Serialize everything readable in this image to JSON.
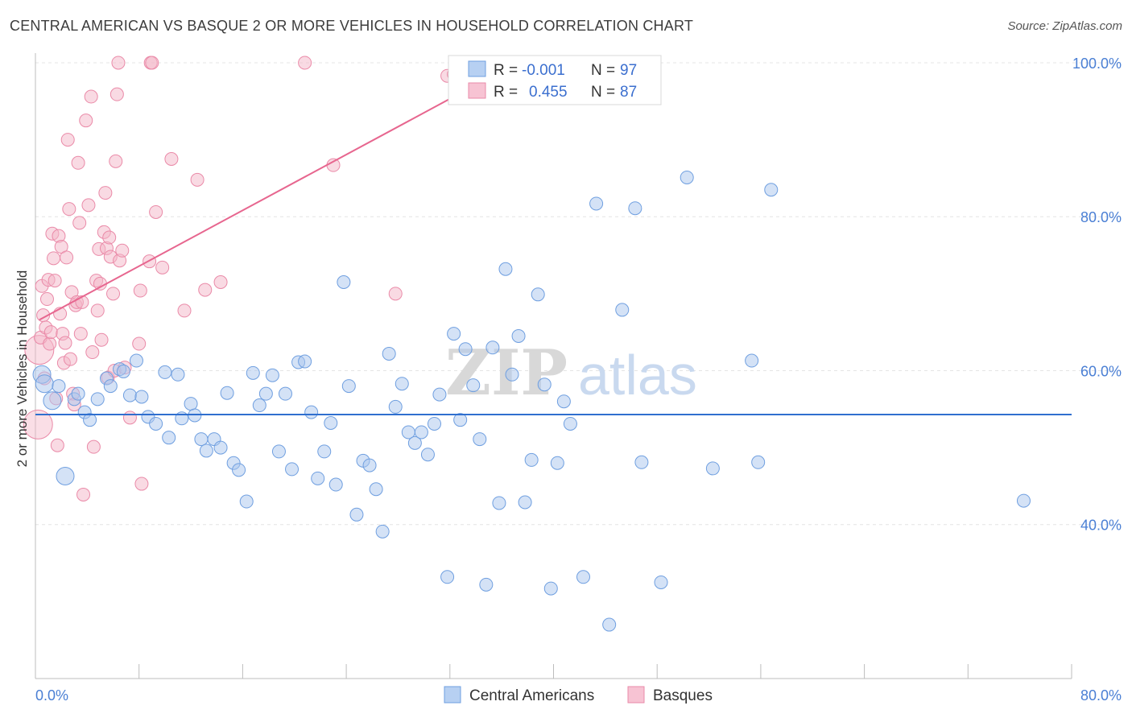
{
  "title": "CENTRAL AMERICAN VS BASQUE 2 OR MORE VEHICLES IN HOUSEHOLD CORRELATION CHART",
  "source": "Source: ZipAtlas.com",
  "watermark": {
    "zip": "ZIP",
    "atlas": "atlas"
  },
  "legend_box": {
    "rows": [
      {
        "r_label": "R =",
        "r_value": "-0.001",
        "n_label": "N =",
        "n_value": "97",
        "color": "#a9c6ee"
      },
      {
        "r_label": "R =",
        "r_value": "0.455",
        "n_label": "N =",
        "n_value": "87",
        "color": "#f4b6c8"
      }
    ]
  },
  "bottom_legend": [
    {
      "label": "Central Americans",
      "color": "#a9c6ee"
    },
    {
      "label": "Basques",
      "color": "#f4b6c8"
    }
  ],
  "chart_data": {
    "type": "scatter",
    "title": "CENTRAL AMERICAN VS BASQUE 2 OR MORE VEHICLES IN HOUSEHOLD CORRELATION CHART",
    "xlabel": "",
    "ylabel": "2 or more Vehicles in Household",
    "xlim": [
      0,
      80
    ],
    "ylim": [
      20,
      102
    ],
    "x_tick_labels": [
      "0.0%",
      "80.0%"
    ],
    "y_ticks": [
      40,
      60,
      80,
      100
    ],
    "y_tick_labels": [
      "40.0%",
      "60.0%",
      "80.0%",
      "100.0%"
    ],
    "grid": true,
    "legend_position": "top-center",
    "series": [
      {
        "name": "Central Americans",
        "color": "#6f9fe0",
        "fill": "#a9c6ee",
        "trend": {
          "x": [
            0,
            80
          ],
          "y": [
            54.3,
            54.3
          ],
          "color": "#2f6fcf"
        },
        "points": [
          [
            0.5,
            59.5
          ],
          [
            0.7,
            58.3
          ],
          [
            1.3,
            56.1
          ],
          [
            1.8,
            58.0
          ],
          [
            2.3,
            46.3
          ],
          [
            3.0,
            56.3
          ],
          [
            3.3,
            57.0
          ],
          [
            3.8,
            54.6
          ],
          [
            4.2,
            53.6
          ],
          [
            4.8,
            56.3
          ],
          [
            5.5,
            59.0
          ],
          [
            5.8,
            58.0
          ],
          [
            6.5,
            60.2
          ],
          [
            6.8,
            59.9
          ],
          [
            7.3,
            56.8
          ],
          [
            7.8,
            61.3
          ],
          [
            8.2,
            56.6
          ],
          [
            8.7,
            54.0
          ],
          [
            9.3,
            53.1
          ],
          [
            10.0,
            59.8
          ],
          [
            10.3,
            51.3
          ],
          [
            11.0,
            59.5
          ],
          [
            11.3,
            53.8
          ],
          [
            12.0,
            55.7
          ],
          [
            12.3,
            54.2
          ],
          [
            12.8,
            51.1
          ],
          [
            13.2,
            49.6
          ],
          [
            13.8,
            51.1
          ],
          [
            14.3,
            50.0
          ],
          [
            14.8,
            57.1
          ],
          [
            15.3,
            48.0
          ],
          [
            15.7,
            47.1
          ],
          [
            16.3,
            43.0
          ],
          [
            16.8,
            59.7
          ],
          [
            17.3,
            55.5
          ],
          [
            17.8,
            57.0
          ],
          [
            18.3,
            59.4
          ],
          [
            18.8,
            49.5
          ],
          [
            19.3,
            57.0
          ],
          [
            19.8,
            47.2
          ],
          [
            20.3,
            61.1
          ],
          [
            20.8,
            61.2
          ],
          [
            21.3,
            54.6
          ],
          [
            21.8,
            46.0
          ],
          [
            22.3,
            49.5
          ],
          [
            22.8,
            53.2
          ],
          [
            23.2,
            45.2
          ],
          [
            23.8,
            71.5
          ],
          [
            24.2,
            58.0
          ],
          [
            24.8,
            41.3
          ],
          [
            25.3,
            48.3
          ],
          [
            25.8,
            47.7
          ],
          [
            26.3,
            44.6
          ],
          [
            26.8,
            39.1
          ],
          [
            27.3,
            62.2
          ],
          [
            27.8,
            55.3
          ],
          [
            28.3,
            58.3
          ],
          [
            28.8,
            52.0
          ],
          [
            29.3,
            50.6
          ],
          [
            29.8,
            52.0
          ],
          [
            30.3,
            49.1
          ],
          [
            30.8,
            53.1
          ],
          [
            31.2,
            56.9
          ],
          [
            31.8,
            33.2
          ],
          [
            32.3,
            64.8
          ],
          [
            32.8,
            53.6
          ],
          [
            33.2,
            62.8
          ],
          [
            33.8,
            58.1
          ],
          [
            34.3,
            51.1
          ],
          [
            34.8,
            32.2
          ],
          [
            35.3,
            63.0
          ],
          [
            35.8,
            42.8
          ],
          [
            36.3,
            73.2
          ],
          [
            36.8,
            59.5
          ],
          [
            37.3,
            64.5
          ],
          [
            37.8,
            42.9
          ],
          [
            38.3,
            48.4
          ],
          [
            38.8,
            69.9
          ],
          [
            39.3,
            58.2
          ],
          [
            39.8,
            31.7
          ],
          [
            40.3,
            48.0
          ],
          [
            40.8,
            56.0
          ],
          [
            41.3,
            53.1
          ],
          [
            42.3,
            33.2
          ],
          [
            43.3,
            81.7
          ],
          [
            44.3,
            27.0
          ],
          [
            45.3,
            67.9
          ],
          [
            46.3,
            81.1
          ],
          [
            46.8,
            48.1
          ],
          [
            48.3,
            32.5
          ],
          [
            50.3,
            85.1
          ],
          [
            52.3,
            47.3
          ],
          [
            55.3,
            61.3
          ],
          [
            55.8,
            48.1
          ],
          [
            56.8,
            83.5
          ],
          [
            76.3,
            43.1
          ]
        ],
        "sizes_note": "large points at x=0.5,0.7,1.3,2.3"
      },
      {
        "name": "Basques",
        "color": "#ea8aa8",
        "fill": "#f4b6c8",
        "trend": {
          "x": [
            0.3,
            37.5
          ],
          "y": [
            66.6,
            100.3
          ],
          "color": "#e7668f"
        },
        "points": [
          [
            0.2,
            53.0
          ],
          [
            0.3,
            62.7
          ],
          [
            0.4,
            64.3
          ],
          [
            0.5,
            71.0
          ],
          [
            0.6,
            67.2
          ],
          [
            0.7,
            59.0
          ],
          [
            0.8,
            65.6
          ],
          [
            0.9,
            69.3
          ],
          [
            1.0,
            71.8
          ],
          [
            1.1,
            63.5
          ],
          [
            1.2,
            65.0
          ],
          [
            1.3,
            77.8
          ],
          [
            1.4,
            74.6
          ],
          [
            1.5,
            71.7
          ],
          [
            1.6,
            56.4
          ],
          [
            1.7,
            50.3
          ],
          [
            1.8,
            77.5
          ],
          [
            1.9,
            67.4
          ],
          [
            2.0,
            76.1
          ],
          [
            2.1,
            64.8
          ],
          [
            2.2,
            61.0
          ],
          [
            2.3,
            63.6
          ],
          [
            2.4,
            74.7
          ],
          [
            2.5,
            90.0
          ],
          [
            2.6,
            81.0
          ],
          [
            2.7,
            61.5
          ],
          [
            2.8,
            70.2
          ],
          [
            2.9,
            57.0
          ],
          [
            3.0,
            55.6
          ],
          [
            3.1,
            68.5
          ],
          [
            3.2,
            68.9
          ],
          [
            3.3,
            87.0
          ],
          [
            3.4,
            79.2
          ],
          [
            3.5,
            64.8
          ],
          [
            3.6,
            68.9
          ],
          [
            3.7,
            43.9
          ],
          [
            3.9,
            92.5
          ],
          [
            4.1,
            81.5
          ],
          [
            4.3,
            95.6
          ],
          [
            4.4,
            62.4
          ],
          [
            4.5,
            50.1
          ],
          [
            4.7,
            71.7
          ],
          [
            4.8,
            67.8
          ],
          [
            4.9,
            75.8
          ],
          [
            5.0,
            71.3
          ],
          [
            5.1,
            64.0
          ],
          [
            5.3,
            78.0
          ],
          [
            5.4,
            83.1
          ],
          [
            5.5,
            75.9
          ],
          [
            5.6,
            59.1
          ],
          [
            5.7,
            77.3
          ],
          [
            5.8,
            74.8
          ],
          [
            6.0,
            70.0
          ],
          [
            6.1,
            60.0
          ],
          [
            6.2,
            87.2
          ],
          [
            6.3,
            95.9
          ],
          [
            6.4,
            100.0
          ],
          [
            6.5,
            74.3
          ],
          [
            6.7,
            75.6
          ],
          [
            6.9,
            60.4
          ],
          [
            7.3,
            53.9
          ],
          [
            8.0,
            63.5
          ],
          [
            8.1,
            70.4
          ],
          [
            8.2,
            45.3
          ],
          [
            8.8,
            74.2
          ],
          [
            8.9,
            100.0
          ],
          [
            9.0,
            100.0
          ],
          [
            9.3,
            80.6
          ],
          [
            9.8,
            73.4
          ],
          [
            10.5,
            87.5
          ],
          [
            11.5,
            67.8
          ],
          [
            12.5,
            84.8
          ],
          [
            13.1,
            70.5
          ],
          [
            14.3,
            71.5
          ],
          [
            20.8,
            100.0
          ],
          [
            23.0,
            86.7
          ],
          [
            27.8,
            70.0
          ],
          [
            31.8,
            98.3
          ],
          [
            32.3,
            98.5
          ]
        ]
      }
    ]
  }
}
